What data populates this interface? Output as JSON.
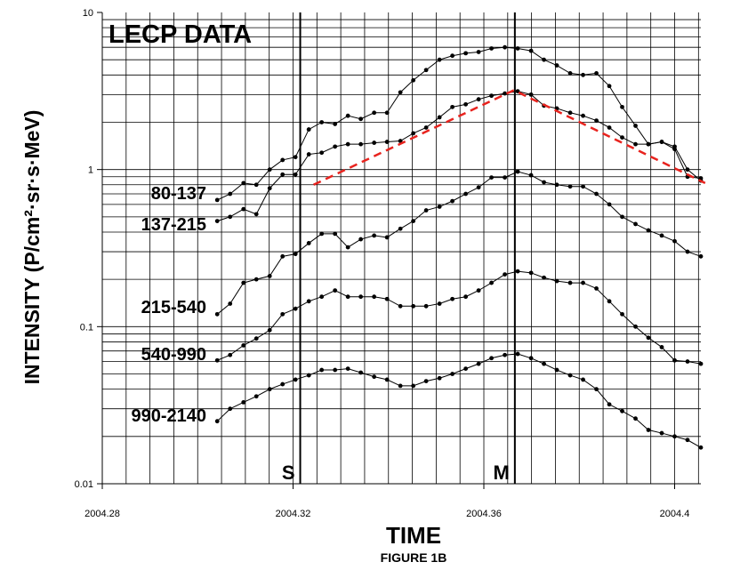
{
  "chart_data": {
    "type": "line",
    "title": "LECP DATA",
    "xlabel": "TIME",
    "ylabel": "INTENSITY (P/cm²·sr·s·MeV)",
    "caption": "FIGURE 1B",
    "xlim": [
      2004.28,
      2004.4055
    ],
    "ylim": [
      0.01,
      10
    ],
    "yscale": "log",
    "grid": "horizontal lines at every log-decade subdivision (1–9 × 10^n); vertical lines every 0.005",
    "x_ticks": [
      {
        "value": 2004.28,
        "label": "2004.28"
      },
      {
        "value": 2004.32,
        "label": "2004.32"
      },
      {
        "value": 2004.36,
        "label": "2004.36"
      },
      {
        "value": 2004.4,
        "label": "2004.4"
      }
    ],
    "y_ticks": [
      {
        "value": 10,
        "label": "10"
      },
      {
        "value": 1,
        "label": "1"
      },
      {
        "value": 0.1,
        "label": "0.1"
      },
      {
        "value": 0.01,
        "label": "0.01"
      }
    ],
    "x": [
      2004.3041,
      2004.3068,
      2004.3096,
      2004.3123,
      2004.3151,
      2004.3178,
      2004.3205,
      2004.3233,
      2004.326,
      2004.3288,
      2004.3315,
      2004.3342,
      2004.337,
      2004.3397,
      2004.3425,
      2004.3452,
      2004.3479,
      2004.3507,
      2004.3534,
      2004.3562,
      2004.3589,
      2004.3616,
      2004.3644,
      2004.3671,
      2004.3699,
      2004.3726,
      2004.3753,
      2004.3781,
      2004.3808,
      2004.3836,
      2004.3863,
      2004.389,
      2004.3918,
      2004.3945,
      2004.3973,
      2004.4,
      2004.4027,
      2004.4055
    ],
    "series": [
      {
        "name": "80-137",
        "values": [
          0.64,
          0.7,
          0.82,
          0.8,
          1.0,
          1.15,
          1.2,
          1.8,
          2.0,
          1.95,
          2.2,
          2.1,
          2.3,
          2.3,
          3.1,
          3.7,
          4.3,
          5.0,
          5.3,
          5.5,
          5.6,
          5.9,
          6.0,
          5.9,
          5.7,
          5.0,
          4.6,
          4.1,
          4.0,
          4.1,
          3.4,
          2.5,
          1.9,
          1.45,
          1.5,
          1.35,
          0.9,
          0.88
        ]
      },
      {
        "name": "137-215",
        "values": [
          0.47,
          0.5,
          0.56,
          0.52,
          0.76,
          0.93,
          0.93,
          1.25,
          1.28,
          1.4,
          1.45,
          1.45,
          1.48,
          1.5,
          1.52,
          1.7,
          1.85,
          2.15,
          2.5,
          2.6,
          2.8,
          2.95,
          3.05,
          3.15,
          3.0,
          2.55,
          2.45,
          2.3,
          2.2,
          2.05,
          1.85,
          1.6,
          1.45,
          1.45,
          1.5,
          1.4,
          1.0,
          0.85
        ]
      },
      {
        "name": "215-540",
        "values": [
          0.12,
          0.14,
          0.19,
          0.2,
          0.21,
          0.28,
          0.29,
          0.34,
          0.39,
          0.39,
          0.32,
          0.36,
          0.38,
          0.37,
          0.42,
          0.47,
          0.55,
          0.58,
          0.63,
          0.7,
          0.77,
          0.89,
          0.89,
          0.97,
          0.92,
          0.83,
          0.8,
          0.78,
          0.78,
          0.7,
          0.6,
          0.5,
          0.45,
          0.41,
          0.38,
          0.35,
          0.3,
          0.28
        ]
      },
      {
        "name": "540-990",
        "values": [
          0.061,
          0.066,
          0.076,
          0.084,
          0.095,
          0.12,
          0.13,
          0.145,
          0.155,
          0.17,
          0.155,
          0.155,
          0.155,
          0.15,
          0.135,
          0.135,
          0.135,
          0.14,
          0.15,
          0.155,
          0.17,
          0.19,
          0.215,
          0.225,
          0.22,
          0.205,
          0.195,
          0.19,
          0.19,
          0.175,
          0.145,
          0.12,
          0.1,
          0.085,
          0.074,
          0.061,
          0.06,
          0.058
        ]
      },
      {
        "name": "990-2140",
        "values": [
          0.025,
          0.03,
          0.033,
          0.036,
          0.04,
          0.043,
          0.046,
          0.049,
          0.053,
          0.053,
          0.054,
          0.051,
          0.048,
          0.046,
          0.042,
          0.042,
          0.045,
          0.047,
          0.05,
          0.054,
          0.058,
          0.063,
          0.066,
          0.067,
          0.063,
          0.058,
          0.053,
          0.049,
          0.046,
          0.04,
          0.032,
          0.029,
          0.026,
          0.022,
          0.021,
          0.02,
          0.019,
          0.017
        ]
      }
    ],
    "trend_line": {
      "color": "#e8231e",
      "style": "dashed",
      "points": [
        [
          2004.3243,
          0.8
        ],
        [
          2004.3663,
          3.2
        ],
        [
          2004.4064,
          0.82
        ]
      ]
    },
    "markers": [
      {
        "label": "S",
        "x": 2004.3215
      },
      {
        "label": "M",
        "x": 2004.3665
      }
    ],
    "colors": {
      "series": "#000000",
      "grid": "#000000",
      "trend": "#e8231e"
    }
  }
}
